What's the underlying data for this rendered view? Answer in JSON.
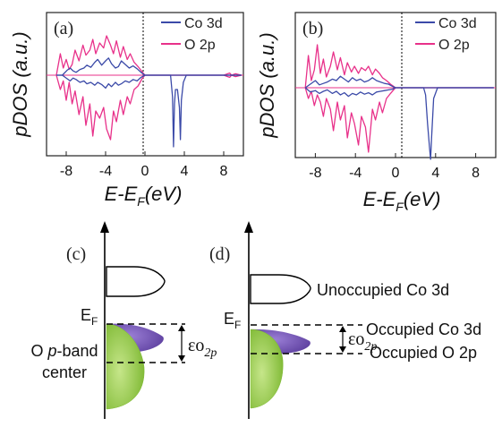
{
  "panels": {
    "a": {
      "label": "(a)",
      "ylabel": "pDOS (a.u.)",
      "xlabel_main": "E-E",
      "xlabel_sub": "F",
      "xlabel_unit": "(eV)",
      "xticks": [
        "-8",
        "-4",
        "0",
        "4",
        "8"
      ],
      "legend": [
        "Co 3d",
        "O 2p"
      ]
    },
    "b": {
      "label": "(b)",
      "ylabel": "pDOS (a.u.)",
      "xlabel_main": "E-E",
      "xlabel_sub": "F",
      "xlabel_unit": "(eV)",
      "xticks": [
        "-8",
        "-4",
        "0",
        "4",
        "8"
      ],
      "legend": [
        "Co 3d",
        "O 2p"
      ]
    },
    "c": {
      "label": "(c)",
      "fermi_label": "E",
      "fermi_sub": "F",
      "band_center_line1_prefix": "O ",
      "band_center_line1_italic": "p",
      "band_center_line1_suffix": "-band",
      "band_center_line2": "center",
      "gap_label": "εo",
      "gap_sub": "2p"
    },
    "d": {
      "label": "(d)",
      "fermi_label": "E",
      "fermi_sub": "F",
      "gap_label": "εo",
      "gap_sub": "2p",
      "text_unoccupied": "Unoccupied Co 3d",
      "text_occupied_co": "Occupied Co 3d",
      "text_occupied_o": "Occupied O 2p"
    }
  },
  "colors": {
    "co3d": "#3b4aa8",
    "o2p": "#e8318a",
    "o_band_fill": "#8dc63f",
    "co_occ_fill": "#7a52b8"
  },
  "chart_data": [
    {
      "type": "line",
      "panel": "a",
      "xlabel": "E-EF (eV)",
      "ylabel": "pDOS (a.u.)",
      "xlim": [
        -10,
        10
      ],
      "xticks": [
        -8,
        -4,
        0,
        4,
        8
      ],
      "legend_position": "top-right",
      "fermi_level_line": 0,
      "series": [
        {
          "name": "Co 3d",
          "color": "#3b4aa8",
          "x": [
            -9.0,
            -8.4,
            -7.9,
            -7.6,
            -7.3,
            -7.0,
            -6.6,
            -6.2,
            -5.9,
            -5.5,
            -5.1,
            -4.8,
            -4.4,
            -4.0,
            -3.7,
            -3.4,
            -3.0,
            -2.7,
            -2.4,
            -2.0,
            -1.6,
            -1.2,
            -0.8,
            -0.4,
            0.0,
            0.5,
            1.0,
            1.5,
            2.0,
            2.6,
            2.8,
            2.9,
            3.0,
            3.1,
            3.3,
            3.5,
            3.6,
            3.7,
            3.9,
            4.2,
            5.0,
            6.0,
            7.0,
            8.0,
            9.0,
            9.8
          ],
          "up": [
            0.0,
            0.0,
            0.07,
            0.1,
            0.06,
            0.04,
            0.08,
            0.1,
            0.14,
            0.11,
            0.18,
            0.22,
            0.14,
            0.2,
            0.24,
            0.16,
            0.1,
            0.12,
            0.2,
            0.15,
            0.1,
            0.13,
            0.09,
            0.04,
            0.0,
            0.0,
            0.0,
            0.0,
            0.0,
            0.0,
            0.0,
            0.0,
            0.0,
            0.0,
            0.0,
            0.0,
            0.0,
            0.0,
            0.0,
            0.0,
            0.0,
            0.0,
            0.0,
            0.0,
            0.0,
            0.0
          ],
          "down": [
            0.0,
            0.0,
            -0.05,
            -0.08,
            -0.04,
            -0.06,
            -0.1,
            -0.08,
            -0.12,
            -0.1,
            -0.14,
            -0.1,
            -0.13,
            -0.18,
            -0.12,
            -0.16,
            -0.1,
            -0.14,
            -0.12,
            -0.08,
            -0.1,
            -0.06,
            -0.08,
            -0.03,
            0.0,
            0.0,
            0.0,
            0.0,
            0.0,
            0.0,
            -0.3,
            -1.0,
            -0.4,
            -0.2,
            -0.2,
            -0.45,
            -0.9,
            -0.35,
            -0.1,
            0.0,
            0.0,
            0.0,
            0.0,
            0.0,
            0.0,
            0.0
          ]
        },
        {
          "name": "O 2p",
          "color": "#e8318a",
          "x": [
            -9.0,
            -8.6,
            -8.3,
            -8.0,
            -7.7,
            -7.4,
            -7.1,
            -6.7,
            -6.3,
            -6.0,
            -5.6,
            -5.3,
            -5.0,
            -4.6,
            -4.2,
            -3.9,
            -3.5,
            -3.2,
            -2.9,
            -2.5,
            -2.2,
            -1.8,
            -1.5,
            -1.1,
            -0.7,
            -0.3,
            0.0,
            0.5,
            1.0,
            2.0,
            3.0,
            4.0,
            5.0,
            6.0,
            7.0,
            8.0,
            8.6,
            8.8,
            9.2,
            9.8
          ],
          "up": [
            0.0,
            0.3,
            0.1,
            0.22,
            0.08,
            0.15,
            0.35,
            0.2,
            0.42,
            0.28,
            0.35,
            0.5,
            0.3,
            0.45,
            0.38,
            0.55,
            0.42,
            0.3,
            0.48,
            0.25,
            0.4,
            0.22,
            0.3,
            0.18,
            0.12,
            0.05,
            0.0,
            0.0,
            0.0,
            0.0,
            0.0,
            0.0,
            0.0,
            0.0,
            0.0,
            0.0,
            0.03,
            0.0,
            0.02,
            0.0
          ],
          "down": [
            0.0,
            -0.2,
            -0.08,
            -0.35,
            -0.1,
            -0.4,
            -0.22,
            -0.55,
            -0.3,
            -0.7,
            -0.4,
            -0.85,
            -0.5,
            -0.6,
            -0.45,
            -0.75,
            -0.9,
            -0.5,
            -0.65,
            -0.35,
            -0.55,
            -0.3,
            -0.4,
            -0.2,
            -0.15,
            -0.05,
            0.0,
            0.0,
            0.0,
            0.0,
            0.0,
            0.0,
            0.0,
            0.0,
            0.0,
            0.0,
            -0.03,
            0.0,
            -0.02,
            0.0
          ]
        }
      ]
    },
    {
      "type": "line",
      "panel": "b",
      "xlabel": "E-EF (eV)",
      "ylabel": "pDOS (a.u.)",
      "xlim": [
        -10,
        10
      ],
      "xticks": [
        -8,
        -4,
        0,
        4,
        8
      ],
      "legend_position": "top-right",
      "fermi_level_line": 0,
      "series": [
        {
          "name": "Co 3d",
          "color": "#3b4aa8",
          "x": [
            -9.0,
            -8.5,
            -8.0,
            -7.6,
            -7.2,
            -6.8,
            -6.3,
            -5.9,
            -5.5,
            -5.1,
            -4.7,
            -4.3,
            -3.9,
            -3.5,
            -3.1,
            -2.7,
            -2.3,
            -1.9,
            -1.5,
            -1.1,
            -0.7,
            -0.3,
            0.0,
            1.0,
            2.0,
            2.8,
            3.0,
            3.2,
            3.4,
            3.5,
            3.6,
            3.8,
            4.2,
            5.0,
            6.0,
            7.0,
            8.0,
            9.0,
            9.8
          ],
          "up": [
            0.0,
            0.05,
            0.1,
            0.04,
            0.06,
            0.08,
            0.12,
            0.1,
            0.16,
            0.12,
            0.08,
            0.14,
            0.1,
            0.12,
            0.08,
            0.1,
            0.14,
            0.1,
            0.08,
            0.06,
            0.05,
            0.02,
            0.0,
            0.0,
            0.0,
            0.0,
            0.0,
            0.0,
            0.0,
            0.0,
            0.0,
            0.0,
            0.0,
            0.0,
            0.0,
            0.0,
            0.0,
            0.0,
            0.0
          ],
          "down": [
            0.0,
            -0.06,
            -0.04,
            -0.08,
            -0.05,
            -0.03,
            -0.08,
            -0.05,
            -0.1,
            -0.07,
            -0.12,
            -0.08,
            -0.1,
            -0.06,
            -0.09,
            -0.07,
            -0.1,
            -0.06,
            -0.05,
            -0.04,
            -0.03,
            -0.02,
            0.0,
            0.0,
            0.0,
            0.0,
            -0.1,
            -0.5,
            -0.85,
            -1.0,
            -0.7,
            -0.15,
            0.0,
            0.0,
            0.0,
            0.0,
            0.0,
            0.0,
            0.0
          ]
        },
        {
          "name": "O 2p",
          "color": "#e8318a",
          "x": [
            -9.0,
            -8.7,
            -8.4,
            -8.1,
            -7.8,
            -7.5,
            -7.2,
            -6.9,
            -6.5,
            -6.2,
            -5.8,
            -5.5,
            -5.1,
            -4.8,
            -4.4,
            -4.1,
            -3.7,
            -3.4,
            -3.0,
            -2.7,
            -2.3,
            -2.0,
            -1.6,
            -1.3,
            -0.9,
            -0.5,
            -0.2,
            0.0,
            1.0,
            2.0,
            3.0,
            4.0,
            5.0,
            6.0,
            7.0,
            8.0,
            9.0,
            9.8
          ],
          "up": [
            0.0,
            0.45,
            0.1,
            0.25,
            0.6,
            0.2,
            0.4,
            0.15,
            0.3,
            0.5,
            0.25,
            0.42,
            0.18,
            0.35,
            0.22,
            0.3,
            0.2,
            0.28,
            0.24,
            0.3,
            0.18,
            0.26,
            0.2,
            0.14,
            0.1,
            0.05,
            0.02,
            0.0,
            0.0,
            0.0,
            0.0,
            0.0,
            0.0,
            0.0,
            0.0,
            0.0,
            0.0,
            0.0
          ],
          "down": [
            0.0,
            -0.15,
            -0.05,
            -0.25,
            -0.1,
            -0.2,
            -0.4,
            -0.15,
            -0.3,
            -0.6,
            -0.2,
            -0.45,
            -0.25,
            -0.7,
            -0.35,
            -0.5,
            -0.8,
            -0.4,
            -0.55,
            -0.9,
            -0.3,
            -0.45,
            -0.2,
            -0.35,
            -0.15,
            -0.08,
            -0.03,
            0.0,
            0.0,
            0.0,
            0.0,
            0.0,
            0.0,
            0.0,
            0.0,
            0.0,
            0.0,
            0.0
          ]
        }
      ]
    }
  ]
}
